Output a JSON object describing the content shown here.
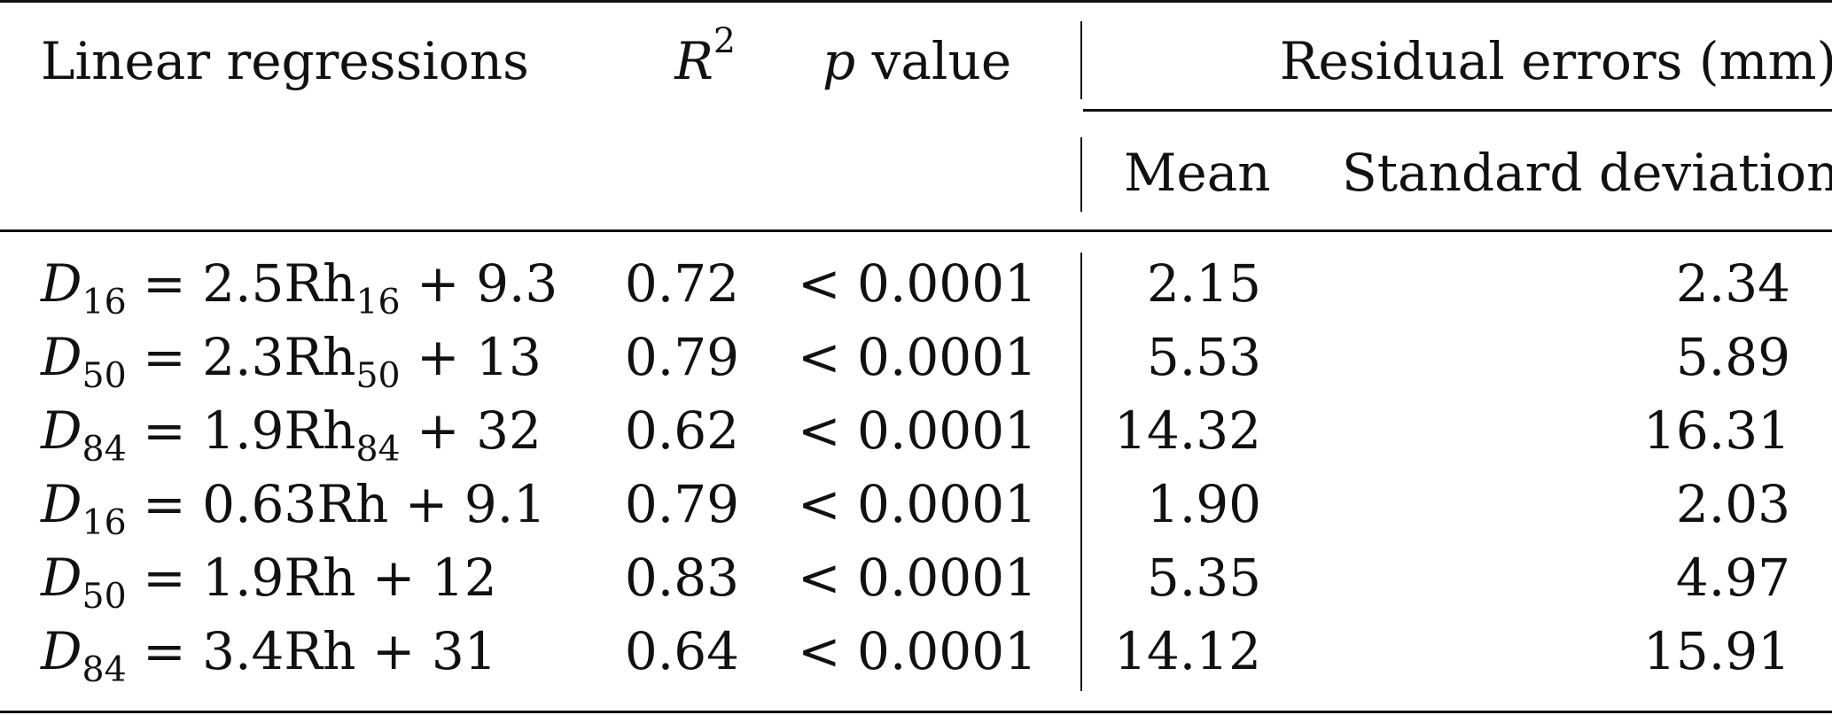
{
  "table": {
    "headers": {
      "col1": "Linear regressions",
      "r2_base": "R",
      "r2_exp": "2",
      "p_italic": "p",
      "p_rest": " value",
      "group": "Residual errors (mm)",
      "mean": "Mean",
      "std": "Standard deviation"
    },
    "rows": [
      {
        "d": "D",
        "dsub": "16",
        "rh": "2.5Rh",
        "rhsub": "16",
        "c": " + 9.3",
        "r2": "0.72",
        "p": "< 0.0001",
        "mean": "2.15",
        "std": "2.34"
      },
      {
        "d": "D",
        "dsub": "50",
        "rh": "2.3Rh",
        "rhsub": "50",
        "c": " + 13",
        "r2": "0.79",
        "p": "< 0.0001",
        "mean": "5.53",
        "std": "5.89"
      },
      {
        "d": "D",
        "dsub": "84",
        "rh": "1.9Rh",
        "rhsub": "84",
        "c": " + 32",
        "r2": "0.62",
        "p": "< 0.0001",
        "mean": "14.32",
        "std": "16.31"
      },
      {
        "d": "D",
        "dsub": "16",
        "rh": "0.63Rh",
        "rhsub": "",
        "c": " + 9.1",
        "r2": "0.79",
        "p": "< 0.0001",
        "mean": "1.90",
        "std": "2.03"
      },
      {
        "d": "D",
        "dsub": "50",
        "rh": "1.9Rh",
        "rhsub": "",
        "c": " + 12",
        "r2": "0.83",
        "p": "< 0.0001",
        "mean": "5.35",
        "std": "4.97"
      },
      {
        "d": "D",
        "dsub": "84",
        "rh": "3.4Rh",
        "rhsub": "",
        "c": " + 31",
        "r2": "0.64",
        "p": "< 0.0001",
        "mean": "14.12",
        "std": "15.91"
      }
    ]
  }
}
